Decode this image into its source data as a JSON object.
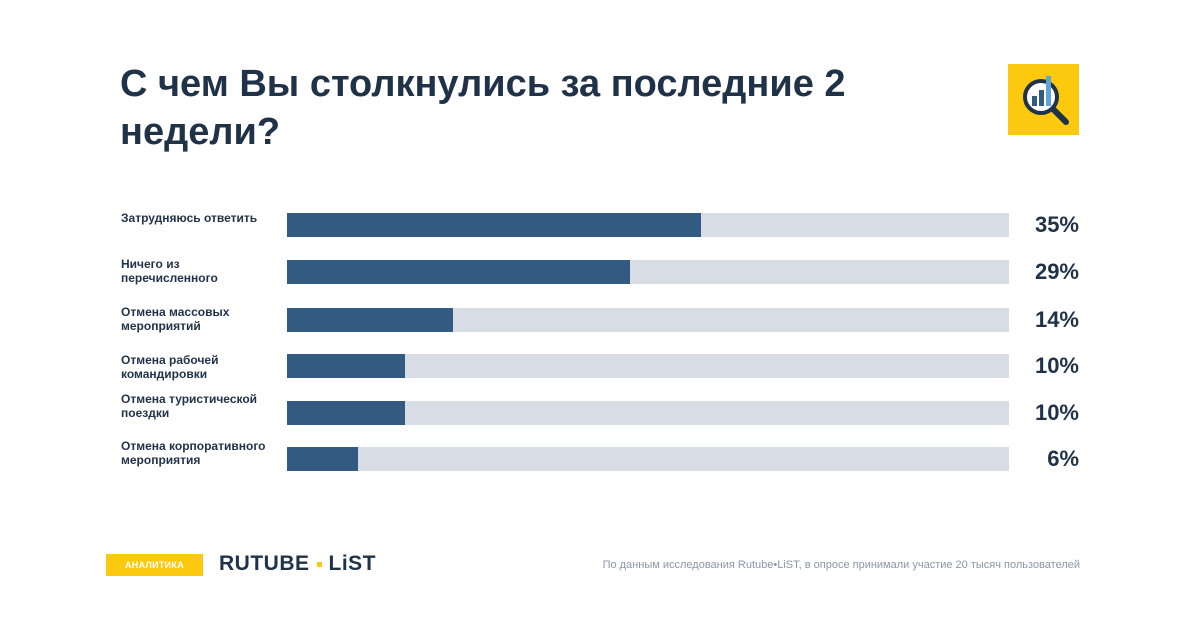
{
  "header": {
    "title": "С чем Вы столкнулись за последние 2 недели?"
  },
  "logo": {
    "icon": "magnifier-chart-icon",
    "background": "#fdc90f"
  },
  "chart_data": {
    "type": "bar",
    "orientation": "horizontal",
    "title": "С чем Вы столкнулись за последние 2 недели?",
    "categories": [
      "Затрудняюсь ответить",
      "Ничего из перечисленного",
      "Отмена массовых мероприятий",
      "Отмена рабочей командировки",
      "Отмена туристической поездки",
      "Отмена корпоративного мероприятия"
    ],
    "labels_display": [
      "Затрудняюсь ответить",
      "Ничего из\nперечисленного",
      "Отмена массовых\nмероприятий",
      "Отмена рабочей\nкомандировки",
      "Отмена туристической\nпоездки",
      "Отмена корпоративного\nмероприятия"
    ],
    "values": [
      35,
      29,
      14,
      10,
      10,
      6
    ],
    "value_labels": [
      "35%",
      "29%",
      "14%",
      "10%",
      "10%",
      "6%"
    ],
    "unit": "%",
    "xlim": [
      0,
      61
    ],
    "colors": {
      "bar": "#335b82",
      "track": "#d8dde5"
    },
    "grid": false,
    "legend": "none"
  },
  "footer": {
    "badge": "АНАЛИТИКА",
    "brand_left": "RUTUBE",
    "brand_right": "LiST",
    "source": "По данным исследования Rutube•LiST, в опросе принимали участие 20 тысяч пользователей",
    "accent": "#fdc90f"
  }
}
